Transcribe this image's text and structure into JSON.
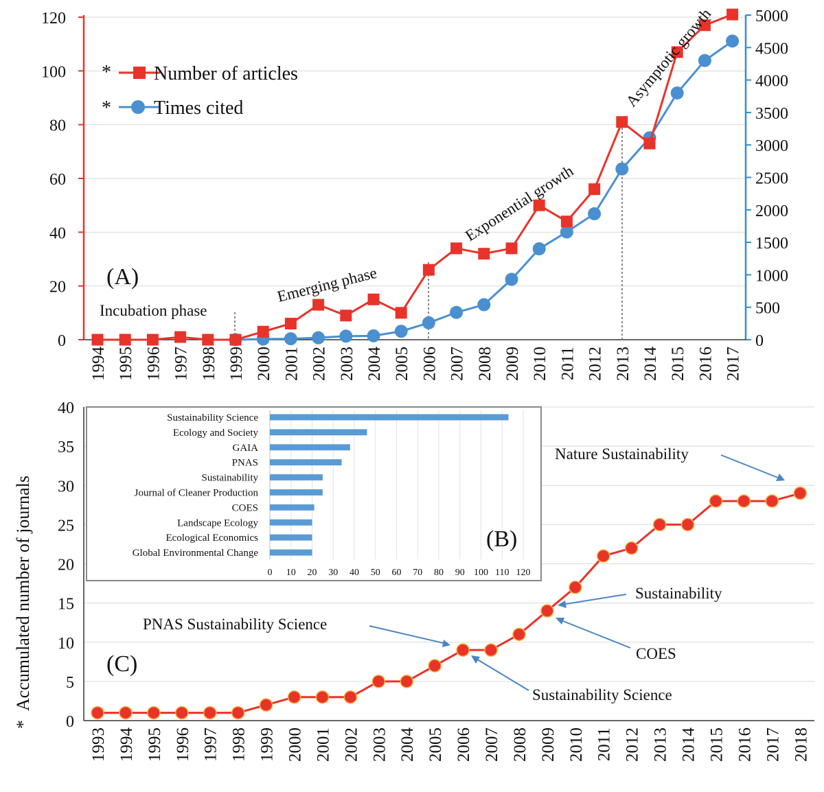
{
  "chart_data": [
    {
      "panel": "(A)",
      "type": "line",
      "categories": [
        "1994",
        "1995",
        "1996",
        "1997",
        "1998",
        "1999",
        "2000",
        "2001",
        "2002",
        "2003",
        "2004",
        "2005",
        "2006",
        "2007",
        "2008",
        "2009",
        "2010",
        "2011",
        "2012",
        "2013",
        "2014",
        "2015",
        "2016",
        "2017"
      ],
      "series": [
        {
          "name": "Number of articles",
          "axis": "left",
          "color": "#e8332a",
          "marker": "square",
          "values": [
            0,
            0,
            0,
            1,
            0,
            0,
            3,
            6,
            13,
            9,
            15,
            10,
            26,
            34,
            32,
            34,
            50,
            44,
            56,
            81,
            73,
            107,
            117,
            121
          ]
        },
        {
          "name": "Times cited",
          "axis": "right",
          "color": "#4a90d0",
          "marker": "circle",
          "values": [
            null,
            null,
            null,
            null,
            null,
            0,
            10,
            15,
            30,
            55,
            60,
            130,
            260,
            420,
            540,
            930,
            1400,
            1660,
            1940,
            2630,
            3110,
            3800,
            4300,
            4600
          ]
        }
      ],
      "y_left": {
        "lim": [
          0,
          120
        ],
        "ticks": [
          "0",
          "20",
          "40",
          "60",
          "80",
          "100",
          "120"
        ]
      },
      "y_right": {
        "lim": [
          0,
          5000
        ],
        "ticks": [
          "0",
          "500",
          "1000",
          "1500",
          "2000",
          "2500",
          "3000",
          "3500",
          "4000",
          "4500",
          "5000"
        ]
      },
      "legend_star": "*",
      "annotations": [
        "Incubation phase",
        "Emerging phase",
        "Exponential growth",
        "Asymptotic growth"
      ],
      "phase_breaks": [
        "1999",
        "2006",
        "2013"
      ]
    },
    {
      "panel": "(B)",
      "type": "bar",
      "orientation": "horizontal",
      "categories": [
        "Sustainability Science",
        "Ecology and Society",
        "GAIA",
        "PNAS",
        "Sustainability",
        "Journal of Cleaner Production",
        "COES",
        "Landscape Ecology",
        "Ecological Economics",
        "Global Environmental Change"
      ],
      "values": [
        113,
        46,
        38,
        34,
        25,
        25,
        21,
        20,
        20,
        20
      ],
      "xlim": [
        0,
        120
      ],
      "xticks": [
        "0",
        "10",
        "20",
        "30",
        "40",
        "50",
        "60",
        "70",
        "80",
        "90",
        "100",
        "110",
        "120"
      ],
      "color": "#5b9bd5"
    },
    {
      "panel": "(C)",
      "type": "line",
      "categories": [
        "1993",
        "1994",
        "1995",
        "1996",
        "1997",
        "1998",
        "1999",
        "2000",
        "2001",
        "2002",
        "2003",
        "2004",
        "2005",
        "2006",
        "2007",
        "2008",
        "2009",
        "2010",
        "2011",
        "2012",
        "2013",
        "2014",
        "2015",
        "2016",
        "2017",
        "2018"
      ],
      "values": [
        1,
        1,
        1,
        1,
        1,
        1,
        2,
        3,
        3,
        3,
        5,
        5,
        7,
        9,
        9,
        11,
        14,
        17,
        21,
        22,
        25,
        25,
        28,
        28,
        28,
        29
      ],
      "ylabel": "Accumulated number of journals",
      "ylabel_star": "*",
      "ylim": [
        0,
        40
      ],
      "yticks": [
        "0",
        "5",
        "10",
        "15",
        "20",
        "25",
        "30",
        "35",
        "40"
      ],
      "color": "#e8332a",
      "annotations": [
        "Nature Sustainability",
        "Sustainability",
        "PNAS Sustainability Science",
        "COES",
        "Sustainability Science"
      ]
    }
  ]
}
